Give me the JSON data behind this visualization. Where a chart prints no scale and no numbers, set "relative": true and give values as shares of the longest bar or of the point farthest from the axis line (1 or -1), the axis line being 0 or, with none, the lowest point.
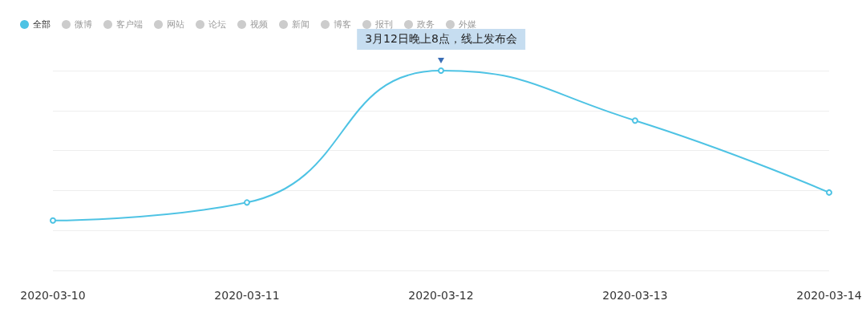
{
  "chart_data": {
    "type": "line",
    "relative": true,
    "categories": [
      "2020-03-10",
      "2020-03-11",
      "2020-03-12",
      "2020-03-13",
      "2020-03-14"
    ],
    "series": [
      {
        "name": "全部",
        "color": "#4ec3e4",
        "values": [
          0.25,
          0.34,
          1,
          0.75,
          0.39
        ]
      },
      {
        "name": "微博",
        "color": "#cccccc",
        "values": [
          null,
          null,
          null,
          null,
          null
        ]
      },
      {
        "name": "客户端",
        "color": "#cccccc",
        "values": [
          null,
          null,
          null,
          null,
          null
        ]
      },
      {
        "name": "网站",
        "color": "#cccccc",
        "values": [
          null,
          null,
          null,
          null,
          null
        ]
      },
      {
        "name": "论坛",
        "color": "#cccccc",
        "values": [
          null,
          null,
          null,
          null,
          null
        ]
      },
      {
        "name": "视频",
        "color": "#cccccc",
        "values": [
          null,
          null,
          null,
          null,
          null
        ]
      },
      {
        "name": "新闻",
        "color": "#cccccc",
        "values": [
          null,
          null,
          null,
          null,
          null
        ]
      },
      {
        "name": "博客",
        "color": "#cccccc",
        "values": [
          null,
          null,
          null,
          null,
          null
        ]
      },
      {
        "name": "报刊",
        "color": "#cccccc",
        "values": [
          null,
          null,
          null,
          null,
          null
        ]
      },
      {
        "name": "政务",
        "color": "#cccccc",
        "values": [
          null,
          null,
          null,
          null,
          null
        ]
      },
      {
        "name": "外媒",
        "color": "#cccccc",
        "values": [
          null,
          null,
          null,
          null,
          null
        ]
      }
    ],
    "annotations": [
      {
        "text": "3月12日晚上8点，线上发布会",
        "x": "2020-03-12",
        "y": 1
      }
    ],
    "grid": "y",
    "legend": "top left",
    "marker": "circle",
    "line_style": "solid"
  }
}
